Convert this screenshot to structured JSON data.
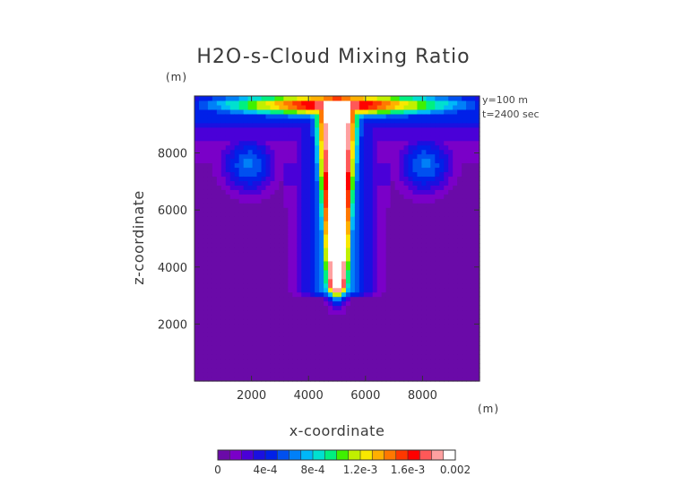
{
  "chart_data": {
    "type": "heatmap",
    "title": "H2O-s-Cloud Mixing Ratio",
    "xlabel": "x-coordinate",
    "ylabel": "z-coordinate",
    "x_unit": "(m)",
    "y_unit": "(m)",
    "annotations": [
      "y=100 m",
      "t=2400 sec"
    ],
    "xlim": [
      0,
      10000
    ],
    "ylim": [
      0,
      10000
    ],
    "x_ticks": [
      2000,
      4000,
      6000,
      8000
    ],
    "y_ticks": [
      2000,
      4000,
      6000,
      8000
    ],
    "colorbar": {
      "range": [
        0,
        0.002
      ],
      "tick_values": [
        0,
        0.0004,
        0.0008,
        0.0012,
        0.0016,
        0.002
      ],
      "tick_labels": [
        "0",
        "4e-4",
        "8e-4",
        "1.2e-3",
        "1.6e-3",
        "0.002"
      ],
      "colors": [
        "#6a0aa8",
        "#7a00c8",
        "#4a00d8",
        "#1a10e0",
        "#0020e8",
        "#0050f0",
        "#0080f8",
        "#00b8f8",
        "#00e0d0",
        "#00f080",
        "#40f000",
        "#c0f000",
        "#f8e800",
        "#ffb000",
        "#ff7800",
        "#ff3800",
        "#ff0000",
        "#ff5858",
        "#ffa0a0",
        "#ffffff"
      ]
    },
    "fields": {
      "background_value": 5e-05,
      "column_center_x": 5000,
      "column_core_top_z": 9800,
      "column_core_bottom_z": 3300,
      "column_base_z": 2900,
      "top_layer_z": [
        8800,
        9900
      ],
      "side_lobes": [
        {
          "x_center": 1900,
          "z_center": 7600
        },
        {
          "x_center": 8100,
          "z_center": 7600
        }
      ]
    }
  }
}
